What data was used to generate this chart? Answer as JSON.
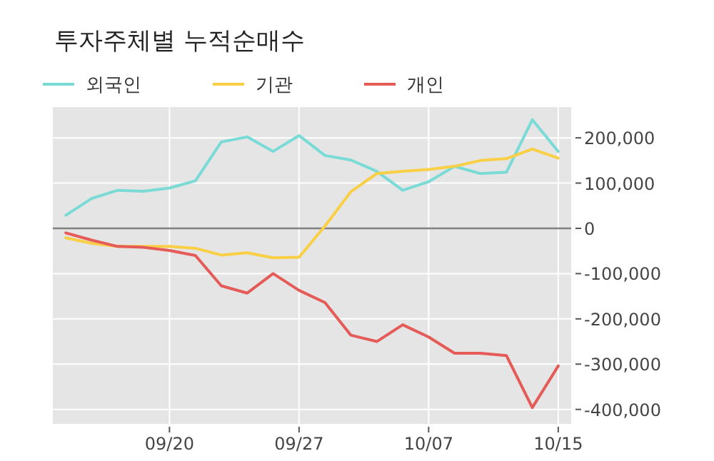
{
  "chart_data": {
    "type": "line",
    "title": "투자주체별 누적순매수",
    "categories": [
      null,
      null,
      null,
      null,
      "09/20",
      null,
      null,
      null,
      null,
      "09/27",
      null,
      null,
      null,
      null,
      "10/07",
      null,
      null,
      null,
      null,
      "10/15"
    ],
    "series": [
      {
        "name": "외국인",
        "color": "#7adbd6",
        "values": [
          29000,
          66000,
          84000,
          82000,
          89000,
          105000,
          191000,
          202000,
          170000,
          205000,
          161000,
          151000,
          126000,
          84000,
          103000,
          137000,
          121000,
          124000,
          240000,
          170000
        ]
      },
      {
        "name": "기관",
        "color": "#f9cf45",
        "values": [
          -21000,
          -33000,
          -40000,
          -40000,
          -40000,
          -44000,
          -59000,
          -54000,
          -65000,
          -64000,
          5000,
          81000,
          121000,
          126000,
          130000,
          137000,
          150000,
          154000,
          175000,
          155000
        ]
      },
      {
        "name": "개인",
        "color": "#e45b57",
        "values": [
          -10000,
          -26000,
          -40000,
          -42000,
          -49000,
          -60000,
          -127000,
          -143000,
          -100000,
          -137000,
          -164000,
          -236000,
          -250000,
          -213000,
          -240000,
          -276000,
          -276000,
          -281000,
          -396000,
          -304000
        ]
      }
    ],
    "ylim": [
      -432000,
      268000
    ],
    "yticks": [
      {
        "value": -400000,
        "label": "-400,000"
      },
      {
        "value": -300000,
        "label": "-300,000"
      },
      {
        "value": -200000,
        "label": "-200,000"
      },
      {
        "value": -100000,
        "label": "-100,000"
      },
      0,
      {
        "value": 100000,
        "label": "100,000"
      },
      {
        "value": 200000,
        "label": "200,000"
      }
    ],
    "ref_lines": [
      {
        "axis": "y",
        "value": 0,
        "color": "#808080"
      }
    ],
    "grid": true,
    "legend": "top left",
    "marker": "none",
    "line_style": "solid"
  }
}
